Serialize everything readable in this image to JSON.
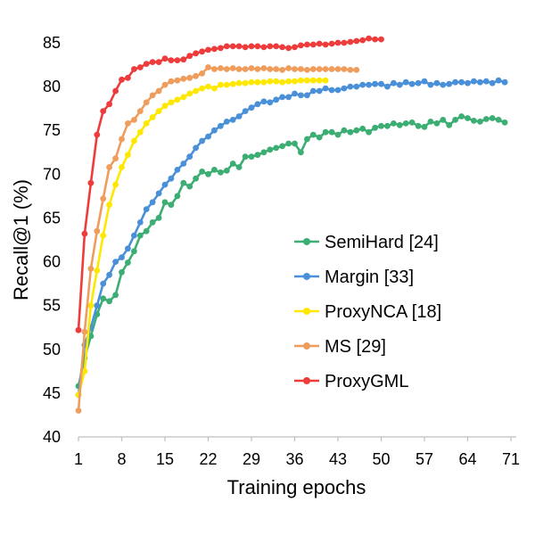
{
  "chart_data": {
    "type": "line",
    "xlabel": "Training epochs",
    "ylabel": "Recall@1 (%)",
    "ylim": [
      40,
      85
    ],
    "xlim": [
      1,
      71
    ],
    "grid": false,
    "legend_position": "bottom-right",
    "y_ticks": [
      "40",
      "45",
      "50",
      "55",
      "60",
      "65",
      "70",
      "75",
      "80",
      "85"
    ],
    "x_ticks": [
      "1",
      "8",
      "15",
      "22",
      "29",
      "36",
      "43",
      "50",
      "57",
      "64",
      "71"
    ],
    "series": [
      {
        "name": "SemiHard [24]",
        "color": "#3cae74",
        "x": [
          1,
          2,
          3,
          4,
          5,
          6,
          7,
          8,
          9,
          10,
          11,
          12,
          13,
          14,
          15,
          16,
          17,
          18,
          19,
          20,
          21,
          22,
          23,
          24,
          25,
          26,
          27,
          28,
          29,
          30,
          31,
          32,
          33,
          34,
          35,
          36,
          37,
          38,
          39,
          40,
          41,
          42,
          43,
          44,
          45,
          46,
          47,
          48,
          49,
          50,
          51,
          52,
          53,
          54,
          55,
          56,
          57,
          58,
          59,
          60,
          61,
          62,
          63,
          64,
          65,
          66,
          67,
          68,
          69,
          70
        ],
        "y": [
          45.8,
          49.0,
          51.5,
          54.0,
          55.8,
          55.5,
          56.2,
          58.8,
          59.9,
          61.2,
          63.0,
          63.5,
          64.5,
          65.0,
          66.8,
          66.5,
          67.5,
          69.0,
          68.6,
          69.5,
          70.3,
          70.0,
          70.5,
          70.2,
          70.4,
          71.2,
          70.8,
          72.0,
          72.0,
          72.2,
          72.5,
          72.8,
          73.0,
          73.2,
          73.5,
          73.5,
          72.5,
          74.0,
          74.5,
          74.2,
          74.8,
          74.8,
          74.5,
          75.0,
          74.8,
          75.0,
          75.2,
          74.8,
          75.3,
          75.5,
          75.5,
          75.8,
          75.6,
          75.8,
          75.9,
          75.5,
          75.4,
          76.0,
          75.8,
          76.2,
          75.6,
          76.2,
          76.6,
          76.4,
          76.1,
          76.0,
          76.3,
          76.4,
          76.2,
          75.9
        ]
      },
      {
        "name": "Margin [33]",
        "color": "#4a90d9",
        "x": [
          1,
          2,
          3,
          4,
          5,
          6,
          7,
          8,
          9,
          10,
          11,
          12,
          13,
          14,
          15,
          16,
          17,
          18,
          19,
          20,
          21,
          22,
          23,
          24,
          25,
          26,
          27,
          28,
          29,
          30,
          31,
          32,
          33,
          34,
          35,
          36,
          37,
          38,
          39,
          40,
          41,
          42,
          43,
          44,
          45,
          46,
          47,
          48,
          49,
          50,
          51,
          52,
          53,
          54,
          55,
          56,
          57,
          58,
          59,
          60,
          61,
          62,
          63,
          64,
          65,
          66,
          67,
          68,
          69,
          70
        ],
        "y": [
          44.8,
          50.5,
          52.5,
          55.0,
          57.5,
          58.5,
          60.0,
          60.5,
          61.5,
          63.0,
          64.5,
          66.0,
          66.8,
          67.8,
          68.8,
          69.5,
          70.5,
          71.2,
          72.0,
          73.0,
          73.8,
          74.3,
          75.0,
          75.5,
          76.0,
          76.2,
          76.6,
          77.2,
          77.6,
          78.0,
          78.3,
          78.2,
          78.5,
          78.8,
          78.8,
          79.2,
          79.0,
          79.0,
          79.5,
          79.5,
          79.8,
          79.6,
          79.6,
          79.8,
          80.0,
          80.0,
          80.2,
          80.2,
          80.3,
          80.3,
          80.0,
          80.4,
          80.2,
          80.5,
          80.3,
          80.4,
          80.6,
          80.2,
          80.4,
          80.2,
          80.3,
          80.5,
          80.5,
          80.4,
          80.6,
          80.5,
          80.6,
          80.4,
          80.7,
          80.5
        ]
      },
      {
        "name": "ProxyNCA [18]",
        "color": "#ffe800",
        "x": [
          1,
          2,
          3,
          4,
          5,
          6,
          7,
          8,
          9,
          10,
          11,
          12,
          13,
          14,
          15,
          16,
          17,
          18,
          19,
          20,
          21,
          22,
          23,
          24,
          25,
          26,
          27,
          28,
          29,
          30,
          31,
          32,
          33,
          34,
          35,
          36,
          37,
          38,
          39,
          40,
          41
        ],
        "y": [
          44.8,
          47.5,
          55.0,
          59.0,
          63.0,
          66.5,
          68.8,
          70.8,
          72.2,
          73.8,
          74.8,
          75.8,
          76.5,
          77.2,
          77.8,
          78.2,
          78.5,
          78.8,
          79.2,
          79.5,
          79.8,
          80.0,
          79.8,
          80.2,
          80.2,
          80.3,
          80.4,
          80.4,
          80.5,
          80.5,
          80.5,
          80.6,
          80.6,
          80.5,
          80.6,
          80.6,
          80.7,
          80.7,
          80.7,
          80.7,
          80.7
        ]
      },
      {
        "name": "MS [29]",
        "color": "#ef9d5c",
        "x": [
          1,
          2,
          3,
          4,
          5,
          6,
          7,
          8,
          9,
          10,
          11,
          12,
          13,
          14,
          15,
          16,
          17,
          18,
          19,
          20,
          21,
          22,
          23,
          24,
          25,
          26,
          27,
          28,
          29,
          30,
          31,
          32,
          33,
          34,
          35,
          36,
          37,
          38,
          39,
          40,
          41,
          42,
          43,
          44,
          45,
          46
        ],
        "y": [
          43.0,
          52.0,
          59.2,
          63.5,
          67.2,
          70.8,
          71.8,
          74.0,
          75.8,
          76.2,
          77.2,
          78.2,
          79.0,
          79.5,
          80.2,
          80.6,
          80.7,
          80.9,
          81.0,
          81.2,
          81.5,
          82.2,
          82.0,
          82.1,
          82.0,
          82.1,
          82.0,
          82.0,
          82.1,
          82.0,
          82.1,
          82.0,
          82.0,
          81.9,
          82.1,
          82.0,
          82.0,
          81.9,
          82.0,
          82.0,
          82.0,
          82.0,
          82.0,
          82.0,
          81.9,
          81.9
        ]
      },
      {
        "name": "ProxyGML",
        "color": "#ee3b3b",
        "x": [
          1,
          2,
          3,
          4,
          5,
          6,
          7,
          8,
          9,
          10,
          11,
          12,
          13,
          14,
          15,
          16,
          17,
          18,
          19,
          20,
          21,
          22,
          23,
          24,
          25,
          26,
          27,
          28,
          29,
          30,
          31,
          32,
          33,
          34,
          35,
          36,
          37,
          38,
          39,
          40,
          41,
          42,
          43,
          44,
          45,
          46,
          47,
          48,
          49,
          50
        ],
        "y": [
          52.2,
          63.2,
          69.0,
          74.5,
          77.2,
          78.0,
          79.5,
          80.8,
          81.0,
          82.0,
          82.2,
          82.6,
          82.8,
          82.8,
          83.2,
          83.0,
          83.0,
          83.1,
          83.5,
          83.8,
          84.0,
          84.2,
          84.3,
          84.4,
          84.6,
          84.6,
          84.6,
          84.5,
          84.6,
          84.6,
          84.5,
          84.6,
          84.6,
          84.5,
          84.4,
          84.5,
          84.7,
          84.8,
          84.8,
          84.9,
          84.8,
          84.9,
          85.0,
          85.0,
          85.1,
          85.2,
          85.3,
          85.5,
          85.4,
          85.4
        ]
      }
    ]
  }
}
